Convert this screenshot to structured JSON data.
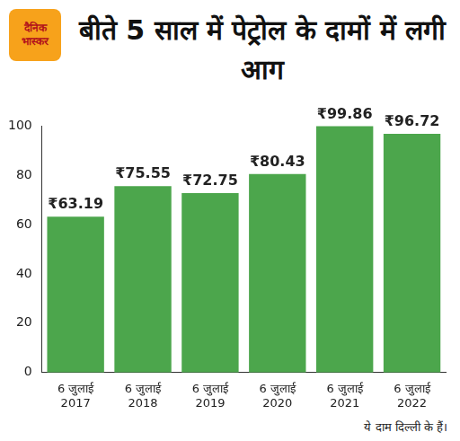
{
  "chart_data": {
    "type": "bar",
    "title": "बीते 5 साल में पेट्रोल के दामों में लगी आग",
    "logo_text": "दैनिक भास्कर",
    "note": "ये दाम दिल्ली के हैं।",
    "categories": [
      "6 जुलाई 2017",
      "6 जुलाई 2018",
      "6 जुलाई 2019",
      "6 जुलाई 2020",
      "6 जुलाई 2021",
      "6 जुलाई 2022"
    ],
    "values": [
      63.19,
      75.55,
      72.75,
      80.43,
      99.86,
      96.72
    ],
    "value_labels": [
      "₹63.19",
      "₹75.55",
      "₹72.75",
      "₹80.43",
      "₹99.86",
      "₹96.72"
    ],
    "data_labels": true,
    "color": "#4ca64c",
    "ylim": [
      0,
      100
    ],
    "yticks": [
      0,
      20,
      40,
      60,
      80,
      100
    ],
    "grid": false
  }
}
